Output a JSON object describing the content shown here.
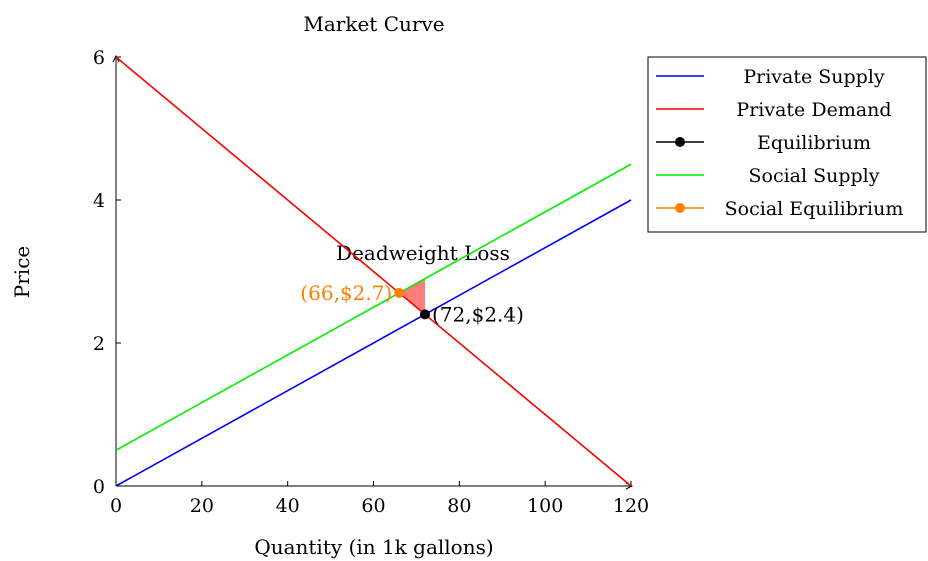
{
  "chart_data": {
    "type": "line",
    "title": "Market Curve",
    "xlabel": "Quantity (in 1k gallons)",
    "ylabel": "Price",
    "xlim": [
      0,
      120
    ],
    "ylim": [
      0,
      6
    ],
    "xticks": [
      "0",
      "20",
      "40",
      "60",
      "80",
      "100",
      "120"
    ],
    "yticks": [
      "0",
      "2",
      "4",
      "6"
    ],
    "legend_position": "top-right outside",
    "series": [
      {
        "name": "Private Supply",
        "color": "#0000ff",
        "points": [
          [
            0,
            0
          ],
          [
            120,
            4
          ]
        ]
      },
      {
        "name": "Private Demand",
        "color": "#ff0000",
        "points": [
          [
            0,
            6
          ],
          [
            120,
            0
          ]
        ]
      },
      {
        "name": "Equilibrium",
        "color": "#000000",
        "marker": true,
        "points": [
          [
            72,
            2.4
          ]
        ]
      },
      {
        "name": "Social Supply",
        "color": "#00ee00",
        "points": [
          [
            0,
            0.5
          ],
          [
            120,
            4.5
          ]
        ]
      },
      {
        "name": "Social Equilibrium",
        "color": "#ff8000",
        "marker": true,
        "points": [
          [
            66,
            2.7
          ]
        ]
      }
    ],
    "shaded_region": {
      "label": "Deadweight Loss",
      "color": "#ff6666",
      "points": [
        [
          66,
          2.7
        ],
        [
          72,
          2.9
        ],
        [
          72,
          2.4
        ]
      ]
    },
    "annotations": [
      {
        "text": "(72,$2.4)",
        "x": 72,
        "y": 2.4,
        "color": "#000000",
        "anchor": "right"
      },
      {
        "text": "(66,$2.7)",
        "x": 66,
        "y": 2.7,
        "color": "#ff8000",
        "anchor": "left"
      }
    ]
  }
}
